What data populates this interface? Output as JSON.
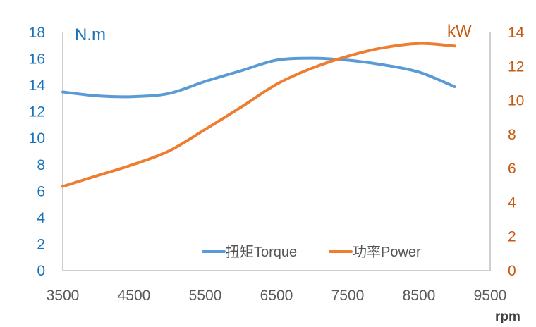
{
  "chart_data": {
    "type": "line",
    "x": [
      3500,
      4000,
      4500,
      5000,
      5500,
      6000,
      6500,
      7000,
      7500,
      8000,
      8500,
      9000
    ],
    "xlabel": "rpm",
    "xticks": [
      3500,
      4500,
      5500,
      6500,
      7500,
      8500,
      9500
    ],
    "xlim": [
      3500,
      9500
    ],
    "y_left": {
      "label": "N.m",
      "ylim": [
        0,
        18
      ],
      "ticks": [
        0,
        2,
        4,
        6,
        8,
        10,
        12,
        14,
        16,
        18
      ]
    },
    "y_right": {
      "label": "kW",
      "ylim": [
        0,
        14
      ],
      "ticks": [
        0,
        2,
        4,
        6,
        8,
        10,
        12,
        14
      ]
    },
    "series": [
      {
        "name": "扭矩Torque",
        "axis": "left",
        "color": "#5b9bd5",
        "values": [
          13.5,
          13.2,
          13.15,
          13.4,
          14.3,
          15.1,
          15.9,
          16.05,
          15.9,
          15.55,
          15.0,
          13.9
        ]
      },
      {
        "name": "功率Power",
        "axis": "right",
        "color": "#ed7d31",
        "values": [
          4.95,
          5.6,
          6.25,
          7.05,
          8.3,
          9.6,
          10.95,
          11.9,
          12.6,
          13.1,
          13.35,
          13.2
        ]
      }
    ],
    "legend_position": "bottom-right",
    "grid": false
  },
  "colors": {
    "left_axis": "#1a73b8",
    "right_axis": "#c55a11",
    "x_axis": "#595959",
    "axis_line": "#bfbfbf"
  }
}
